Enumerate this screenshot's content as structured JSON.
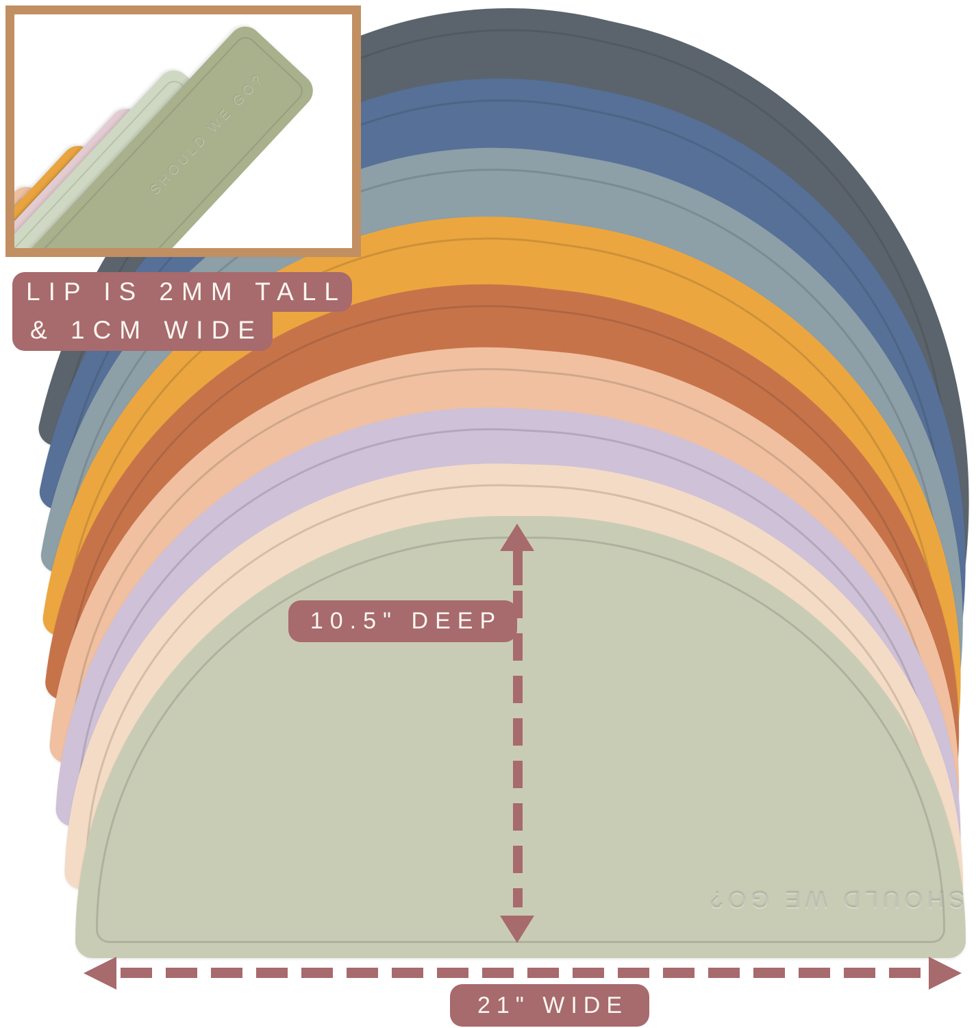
{
  "annotations": {
    "lip_line1": "LIP IS 2MM TALL",
    "lip_line2": "& 1CM WIDE",
    "depth_label": "10.5\" DEEP",
    "width_label": "21\" WIDE"
  },
  "product": {
    "emboss_text": "SHOULD WE GO?",
    "mats": [
      {
        "name": "charcoal",
        "color": "#5b646d"
      },
      {
        "name": "steel-blue",
        "color": "#567098"
      },
      {
        "name": "gray-blue",
        "color": "#8d9fa7"
      },
      {
        "name": "mustard",
        "color": "#eca63f"
      },
      {
        "name": "rust",
        "color": "#c7734a"
      },
      {
        "name": "peach",
        "color": "#f0c0a0"
      },
      {
        "name": "lilac",
        "color": "#cfc1d8"
      },
      {
        "name": "cream",
        "color": "#f4dbc5"
      },
      {
        "name": "sage",
        "color": "#c9ccb5"
      }
    ]
  },
  "inset": {
    "emboss_text": "SHOULD WE GO?",
    "mats": [
      {
        "name": "peach",
        "color": "#eec0a1"
      },
      {
        "name": "mustard",
        "color": "#e9a440"
      },
      {
        "name": "blush",
        "color": "#e3ccd1"
      },
      {
        "name": "pale-sage",
        "color": "#cfd8c3"
      },
      {
        "name": "sage",
        "color": "#a8b08c"
      }
    ]
  },
  "colors": {
    "badge": "#a76a6d",
    "arrow": "#a76a6d",
    "inset_border": "#c18f62",
    "background": "#ffffff"
  }
}
